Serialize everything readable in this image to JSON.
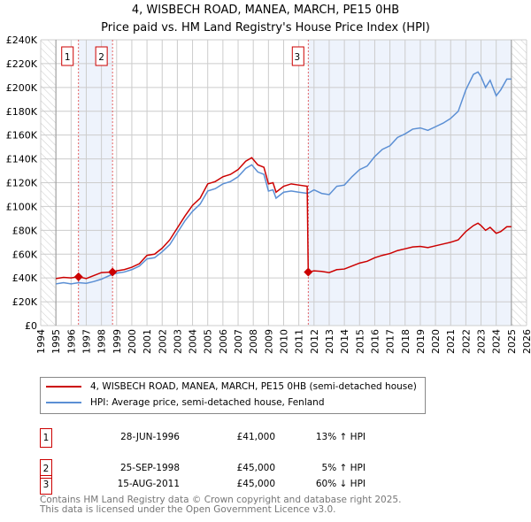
{
  "chart_data": {
    "type": "line",
    "title": "4, WISBECH ROAD, MANEA, MARCH, PE15 0HB",
    "subtitle": "Price paid vs. HM Land Registry's House Price Index (HPI)",
    "xlim": [
      1994,
      2026
    ],
    "ylim": [
      0,
      240000
    ],
    "x_ticks": [
      "1994",
      "1995",
      "1996",
      "1997",
      "1998",
      "1999",
      "2000",
      "2001",
      "2002",
      "2003",
      "2004",
      "2005",
      "2006",
      "2007",
      "2008",
      "2009",
      "2010",
      "2011",
      "2012",
      "2013",
      "2014",
      "2015",
      "2016",
      "2017",
      "2018",
      "2019",
      "2020",
      "2021",
      "2022",
      "2023",
      "2024",
      "2025",
      "2026"
    ],
    "y_ticks": [
      {
        "v": 0,
        "label": "£0"
      },
      {
        "v": 20000,
        "label": "£20K"
      },
      {
        "v": 40000,
        "label": "£40K"
      },
      {
        "v": 60000,
        "label": "£60K"
      },
      {
        "v": 80000,
        "label": "£80K"
      },
      {
        "v": 100000,
        "label": "£100K"
      },
      {
        "v": 120000,
        "label": "£120K"
      },
      {
        "v": 140000,
        "label": "£140K"
      },
      {
        "v": 160000,
        "label": "£160K"
      },
      {
        "v": 180000,
        "label": "£180K"
      },
      {
        "v": 200000,
        "label": "£200K"
      },
      {
        "v": 220000,
        "label": "£220K"
      },
      {
        "v": 240000,
        "label": "£240K"
      }
    ],
    "grid": true,
    "colors": {
      "property": "#cc0000",
      "hpi": "#5b8fd4",
      "shade": "#eef3fc"
    },
    "series": [
      {
        "name": "4, WISBECH ROAD, MANEA, MARCH, PE15 0HB (semi-detached house)",
        "color": "#cc0000",
        "x": [
          1995,
          1995.5,
          1996,
          1996.49,
          1997,
          1997.5,
          1998,
          1998.73,
          1999,
          1999.5,
          2000,
          2000.5,
          2001,
          2001.5,
          2002,
          2002.5,
          2003,
          2003.5,
          2004,
          2004.5,
          2005,
          2005.5,
          2006,
          2006.5,
          2007,
          2007.5,
          2007.9,
          2008.3,
          2008.7,
          2009,
          2009.3,
          2009.5,
          2010,
          2010.5,
          2011,
          2011.55,
          2011.62,
          2012,
          2012.5,
          2013,
          2013.5,
          2014,
          2014.5,
          2015,
          2015.5,
          2016,
          2016.5,
          2017,
          2017.5,
          2018,
          2018.5,
          2019,
          2019.5,
          2020,
          2020.5,
          2021,
          2021.5,
          2022,
          2022.5,
          2022.8,
          2023,
          2023.3,
          2023.6,
          2024,
          2024.3,
          2024.7,
          2025
        ],
        "y": [
          39500,
          40500,
          40000,
          41000,
          39500,
          42000,
          44500,
          45000,
          46000,
          47000,
          49000,
          52000,
          59000,
          60000,
          65000,
          72000,
          82000,
          92000,
          101000,
          107000,
          119000,
          121000,
          125000,
          127000,
          131000,
          138000,
          141000,
          135000,
          133000,
          119000,
          120000,
          112000,
          117000,
          119000,
          118000,
          117000,
          45000,
          46000,
          45500,
          44500,
          47000,
          47500,
          50000,
          52500,
          54000,
          57000,
          59000,
          60500,
          63000,
          64500,
          66000,
          66500,
          65500,
          67000,
          68500,
          70000,
          72000,
          79000,
          84000,
          86000,
          84000,
          80000,
          82500,
          77500,
          79000,
          83000,
          83000
        ]
      },
      {
        "name": "HPI: Average price, semi-detached house, Fenland",
        "color": "#5b8fd4",
        "x": [
          1995,
          1995.5,
          1996,
          1996.5,
          1997,
          1997.5,
          1998,
          1998.7,
          1999,
          1999.5,
          2000,
          2000.5,
          2001,
          2001.5,
          2002,
          2002.5,
          2003,
          2003.5,
          2004,
          2004.5,
          2005,
          2005.5,
          2006,
          2006.5,
          2007,
          2007.5,
          2007.9,
          2008.3,
          2008.7,
          2009,
          2009.3,
          2009.5,
          2010,
          2010.5,
          2011,
          2011.6,
          2012,
          2012.5,
          2013,
          2013.5,
          2014,
          2014.5,
          2015,
          2015.5,
          2016,
          2016.5,
          2017,
          2017.5,
          2018,
          2018.5,
          2019,
          2019.5,
          2020,
          2020.5,
          2021,
          2021.5,
          2022,
          2022.5,
          2022.8,
          2023,
          2023.3,
          2023.6,
          2024,
          2024.3,
          2024.7,
          2025
        ],
        "y": [
          35000,
          36000,
          35000,
          36000,
          35500,
          37000,
          39000,
          43000,
          44000,
          45000,
          47000,
          50000,
          56000,
          57000,
          62000,
          68000,
          78000,
          88000,
          96000,
          102000,
          113000,
          115000,
          119000,
          121000,
          125000,
          132000,
          135000,
          129000,
          127000,
          113000,
          114000,
          107000,
          112000,
          113000,
          112000,
          111000,
          114000,
          111000,
          110000,
          117000,
          118000,
          125000,
          131000,
          134000,
          142000,
          148000,
          151000,
          158000,
          161000,
          165000,
          166000,
          164000,
          167000,
          170000,
          174000,
          180000,
          198000,
          211000,
          213000,
          209000,
          200000,
          206000,
          193000,
          198000,
          207000,
          207000
        ]
      }
    ],
    "sales": [
      {
        "n": "1",
        "x": 1996.49,
        "y": 41000
      },
      {
        "n": "2",
        "x": 1998.73,
        "y": 45000
      },
      {
        "n": "3",
        "x": 2011.62,
        "y": 45000
      }
    ],
    "shaded": [
      [
        1996.49,
        1998.73
      ],
      [
        2011.62,
        2025
      ]
    ],
    "hatched": [
      [
        1994,
        1995
      ],
      [
        2025,
        2026
      ]
    ]
  },
  "legend": {
    "property": "4, WISBECH ROAD, MANEA, MARCH, PE15 0HB (semi-detached house)",
    "hpi": "HPI: Average price, semi-detached house, Fenland"
  },
  "transactions": [
    {
      "n": "1",
      "date": "28-JUN-1996",
      "price": "£41,000",
      "hpi": "13% ↑ HPI"
    },
    {
      "n": "2",
      "date": "25-SEP-1998",
      "price": "£45,000",
      "hpi": "5% ↑ HPI"
    },
    {
      "n": "3",
      "date": "15-AUG-2011",
      "price": "£45,000",
      "hpi": "60% ↓ HPI"
    }
  ],
  "footer": {
    "line1": "Contains HM Land Registry data © Crown copyright and database right 2025.",
    "line2": "This data is licensed under the Open Government Licence v3.0."
  }
}
